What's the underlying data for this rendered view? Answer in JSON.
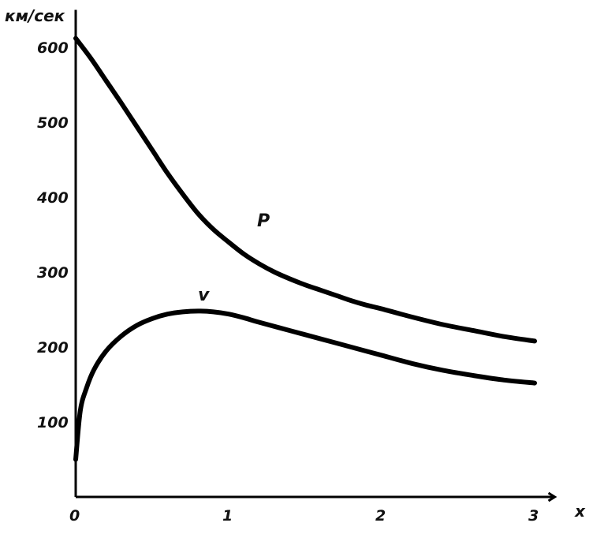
{
  "chart_data": {
    "type": "line",
    "title": "",
    "ylabel": "км/сек",
    "xlabel": "x",
    "xlim": [
      0,
      3.08
    ],
    "ylim": [
      0,
      650
    ],
    "x_ticks": [
      {
        "value": 0,
        "label": "0"
      },
      {
        "value": 1,
        "label": "1"
      },
      {
        "value": 2,
        "label": "2"
      },
      {
        "value": 3,
        "label": "3"
      }
    ],
    "y_ticks": [
      {
        "value": 100,
        "label": "100"
      },
      {
        "value": 200,
        "label": "200"
      },
      {
        "value": 300,
        "label": "300"
      },
      {
        "value": 400,
        "label": "400"
      },
      {
        "value": 500,
        "label": "500"
      },
      {
        "value": 600,
        "label": "600"
      }
    ],
    "series": [
      {
        "name": "P",
        "points": [
          [
            0.0,
            612
          ],
          [
            0.1,
            585
          ],
          [
            0.2,
            555
          ],
          [
            0.3,
            525
          ],
          [
            0.4,
            494
          ],
          [
            0.5,
            463
          ],
          [
            0.6,
            432
          ],
          [
            0.7,
            404
          ],
          [
            0.8,
            378
          ],
          [
            0.9,
            357
          ],
          [
            1.0,
            340
          ],
          [
            1.1,
            324
          ],
          [
            1.2,
            311
          ],
          [
            1.3,
            300
          ],
          [
            1.4,
            291
          ],
          [
            1.5,
            283
          ],
          [
            1.6,
            276
          ],
          [
            1.7,
            269
          ],
          [
            1.8,
            262
          ],
          [
            1.9,
            256
          ],
          [
            2.0,
            251
          ],
          [
            2.2,
            240
          ],
          [
            2.4,
            230
          ],
          [
            2.6,
            222
          ],
          [
            2.8,
            214
          ],
          [
            3.0,
            208
          ]
        ]
      },
      {
        "name": "v",
        "points": [
          [
            0.0,
            50
          ],
          [
            0.03,
            115
          ],
          [
            0.07,
            145
          ],
          [
            0.12,
            170
          ],
          [
            0.2,
            195
          ],
          [
            0.3,
            215
          ],
          [
            0.4,
            229
          ],
          [
            0.5,
            238
          ],
          [
            0.6,
            244
          ],
          [
            0.7,
            247
          ],
          [
            0.8,
            248
          ],
          [
            0.9,
            247
          ],
          [
            1.0,
            244
          ],
          [
            1.1,
            239
          ],
          [
            1.2,
            233
          ],
          [
            1.4,
            222
          ],
          [
            1.6,
            211
          ],
          [
            1.8,
            200
          ],
          [
            2.0,
            189
          ],
          [
            2.2,
            178
          ],
          [
            2.4,
            169
          ],
          [
            2.6,
            162
          ],
          [
            2.8,
            156
          ],
          [
            3.0,
            152
          ]
        ]
      }
    ]
  }
}
